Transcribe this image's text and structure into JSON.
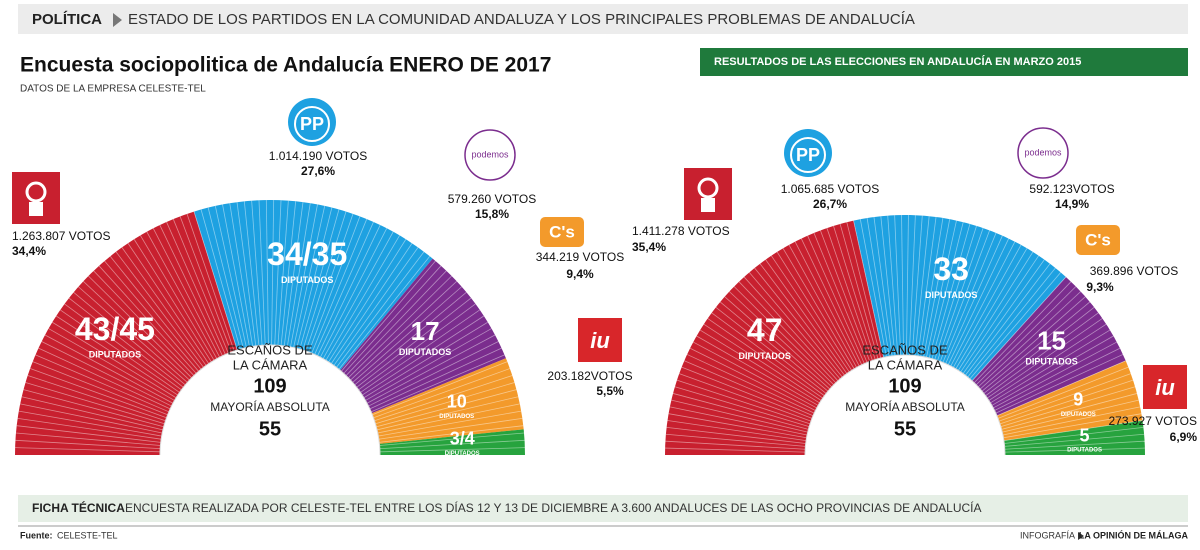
{
  "header": {
    "section": "POLÍTICA",
    "title": "ESTADO DE LOS PARTIDOS EN LA COMUNIDAD ANDALUZA Y LOS PRINCIPALES PROBLEMAS DE ANDALUCÍA"
  },
  "chart_data": [
    {
      "type": "parliament",
      "title": "Encuesta sociopolitica de Andalucía ENERO DE 2017",
      "subtitle": "DATOS DE LA EMPRESA CELESTE-TEL",
      "categories": [
        null,
        "PP",
        "podemos",
        "C's",
        "iu"
      ],
      "colors": [
        "#c8202f",
        "#1ea1e1",
        "#7b2d8e",
        "#f39a2b",
        "#27a33e"
      ],
      "values": [
        44,
        34.5,
        17,
        10,
        3.5
      ],
      "value_labels": [
        "43/45",
        "34/35",
        "17",
        "10",
        "3/4"
      ],
      "seat_unit": "DIPUTADOS",
      "votes": [
        1263807,
        1014190,
        579260,
        344219,
        203182
      ],
      "votes_labels": [
        "1.263.807 VOTOS",
        "1.014.190 VOTOS",
        "579.260 VOTOS",
        "344.219 VOTOS",
        "203.182VOTOS"
      ],
      "vote_share": [
        34.4,
        27.6,
        15.8,
        9.4,
        5.5
      ],
      "vote_share_labels": [
        "34,4%",
        "27,6%",
        "15,8%",
        "9,4%",
        "5,5%"
      ],
      "total_label": [
        "ESCAÑOS DE",
        "LA CÁMARA"
      ],
      "total": 109,
      "majority_label": "MAYORÍA ABSOLUTA",
      "majority": 55
    },
    {
      "type": "parliament",
      "title": "RESULTADOS DE LAS ELECCIONES EN ANDALUCÍA EN MARZO 2015",
      "categories": [
        null,
        "PP",
        "podemos",
        "C's",
        "iu"
      ],
      "colors": [
        "#c8202f",
        "#1ea1e1",
        "#7b2d8e",
        "#f39a2b",
        "#27a33e"
      ],
      "values": [
        47,
        33,
        15,
        9,
        5
      ],
      "value_labels": [
        "47",
        "33",
        "15",
        "9",
        "5"
      ],
      "seat_unit": "DIPUTADOS",
      "votes": [
        1411278,
        1065685,
        592123,
        369896,
        273927
      ],
      "votes_labels": [
        "1.411.278 VOTOS",
        "1.065.685 VOTOS",
        "592.123VOTOS",
        "369.896 VOTOS",
        "273.927 VOTOS"
      ],
      "vote_share": [
        35.4,
        26.7,
        14.9,
        9.3,
        6.9
      ],
      "vote_share_labels": [
        "35,4%",
        "26,7%",
        "14,9%",
        "9,3%",
        "6,9%"
      ],
      "total_label": [
        "ESCAÑOS DE",
        "LA CÁMARA"
      ],
      "total": 109,
      "majority_label": "MAYORÍA ABSOLUTA",
      "majority": 55
    }
  ],
  "footer": {
    "label": "FICHA TÉCNICA",
    "text": "ENCUESTA REALIZADA POR CELESTE-TEL ENTRE LOS DÍAS 12 Y 13 DE DICIEMBRE A 3.600 ANDALUCES DE LAS OCHO PROVINCIAS DE ANDALUCÍA",
    "source_label": "Fuente:",
    "source": "CELESTE-TEL",
    "credit_label": "INFOGRAFÍA",
    "credit": "LA OPINIÓN DE MÁLAGA"
  }
}
